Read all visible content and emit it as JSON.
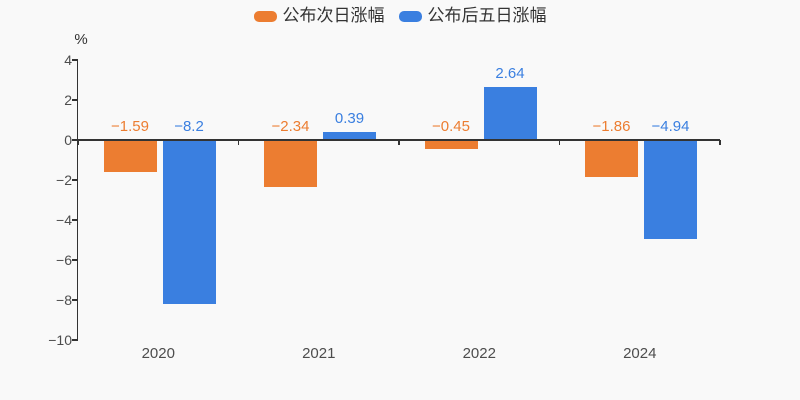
{
  "background": "#f9f9f9",
  "axis_color": "#333333",
  "tick_label_color": "#4d4d4d",
  "legend": {
    "position": "top-center",
    "items": [
      {
        "label": "公布次日涨幅",
        "color": "#ec7d31"
      },
      {
        "label": "公布后五日涨幅",
        "color": "#3a7fe0"
      }
    ]
  },
  "chart_data": {
    "type": "bar",
    "categories": [
      "2020",
      "2021",
      "2022",
      "2024"
    ],
    "series": [
      {
        "name": "公布次日涨幅",
        "color": "#ec7d31",
        "values": [
          -1.59,
          -2.34,
          -0.45,
          -1.86
        ],
        "labels": [
          "−1.59",
          "−2.34",
          "−0.45",
          "−1.86"
        ]
      },
      {
        "name": "公布后五日涨幅",
        "color": "#3a7fe0",
        "values": [
          -8.2,
          0.39,
          2.64,
          -4.94
        ],
        "labels": [
          "−8.2",
          "0.39",
          "2.64",
          "−4.94"
        ]
      }
    ],
    "ylabel": "%",
    "ylim": [
      -10,
      4
    ],
    "ytick_values": [
      4,
      2,
      0,
      -2,
      -4,
      -6,
      -8,
      -10
    ],
    "ytick_labels": [
      "4",
      "2",
      "0",
      "−2",
      "−4",
      "−6",
      "−8",
      "−10"
    ],
    "grid": false,
    "legend_position": "top-center"
  }
}
